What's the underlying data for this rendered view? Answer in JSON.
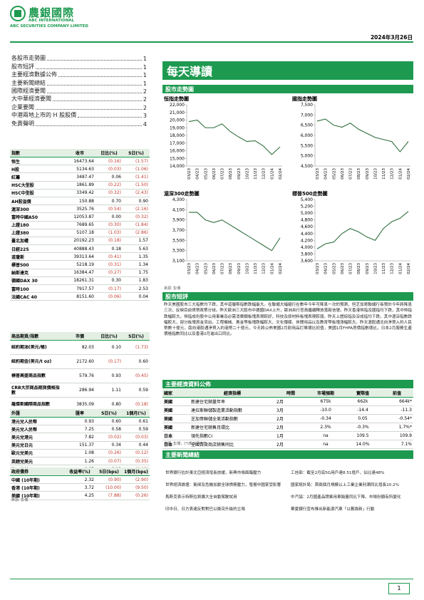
{
  "header": {
    "logo": "農銀國際",
    "company_en": "ABC INTERNATIONAL",
    "company_full": "ABC SECURITIES COMPANY LIMITED",
    "date": "2024年3月26日"
  },
  "toc": [
    {
      "title": "各股市走勢圖",
      "page": "1"
    },
    {
      "title": "股市短評",
      "page": "1"
    },
    {
      "title": "主要經濟數據公佈",
      "page": "1"
    },
    {
      "title": "主要新聞總結",
      "page": "1"
    },
    {
      "title": "國際經濟要聞",
      "page": "2"
    },
    {
      "title": "大中華經濟要聞",
      "page": "2"
    },
    {
      "title": "企業要聞",
      "page": "2"
    },
    {
      "title": "中港兩地上市的 H 股股價",
      "page": "3"
    },
    {
      "title": "免責聲明",
      "page": "4"
    }
  ],
  "title": "每天導讀",
  "charts_section": "股市走勢圖",
  "charts_source": "來源: 彭博",
  "chart_data": [
    {
      "type": "line",
      "title": "恒指走勢圖",
      "color": "#2f6e3e",
      "categories": [
        "03/23",
        "04/23",
        "05/23",
        "06/23",
        "07/23",
        "08/23",
        "09/23",
        "10/23",
        "11/23",
        "12/23",
        "01/24",
        "02/24"
      ],
      "values": [
        19800,
        20000,
        19000,
        19000,
        19500,
        18500,
        17800,
        17200,
        17300,
        16600,
        15500,
        16500
      ],
      "ylim": [
        14000,
        22000
      ],
      "yticks": [
        {
          "value": 14000,
          "label": "14,000"
        },
        {
          "value": 15000,
          "label": "15,000"
        },
        {
          "value": 16000,
          "label": "16,000"
        },
        {
          "value": 17000,
          "label": "17,000"
        },
        {
          "value": 18000,
          "label": "18,000"
        },
        {
          "value": 19000,
          "label": "19,000"
        },
        {
          "value": 20000,
          "label": "20,000"
        },
        {
          "value": 21000,
          "label": "21,000"
        },
        {
          "value": 22000,
          "label": "22,000"
        }
      ]
    },
    {
      "type": "line",
      "title": "國指走勢圖",
      "color": "#2f6e3e",
      "categories": [
        "03/23",
        "04/23",
        "05/23",
        "06/23",
        "07/23",
        "08/23",
        "09/23",
        "10/23",
        "11/23",
        "12/23",
        "01/24",
        "02/24"
      ],
      "values": [
        6700,
        6800,
        6500,
        6400,
        6600,
        6300,
        6100,
        5900,
        5800,
        5700,
        5200,
        5700
      ],
      "ylim": [
        4500,
        7500
      ],
      "yticks": [
        {
          "value": 4500,
          "label": "4,500"
        },
        {
          "value": 5000,
          "label": "5,000"
        },
        {
          "value": 5500,
          "label": "5,500"
        },
        {
          "value": 6000,
          "label": "6,000"
        },
        {
          "value": 6500,
          "label": "6,500"
        },
        {
          "value": 7000,
          "label": "7,000"
        },
        {
          "value": 7500,
          "label": "7,500"
        }
      ]
    },
    {
      "type": "line",
      "title": "滬深300走勢圖",
      "color": "#2f6e3e",
      "categories": [
        "03/23",
        "04/23",
        "05/23",
        "06/23",
        "07/23",
        "08/23",
        "09/23",
        "10/23",
        "11/23",
        "12/23",
        "01/24",
        "02/24"
      ],
      "values": [
        4050,
        4050,
        3900,
        3850,
        3900,
        3800,
        3700,
        3600,
        3500,
        3400,
        3300,
        3550
      ],
      "ylim": [
        3100,
        4300
      ],
      "yticks": [
        {
          "value": 3100,
          "label": "3,100"
        },
        {
          "value": 3300,
          "label": "3,300"
        },
        {
          "value": 3500,
          "label": "3,500"
        },
        {
          "value": 3700,
          "label": "3,700"
        },
        {
          "value": 3900,
          "label": "3,900"
        },
        {
          "value": 4100,
          "label": "4,100"
        },
        {
          "value": 4300,
          "label": "4,300"
        }
      ]
    },
    {
      "type": "line",
      "title": "標普500走勢圖",
      "color": "#2f6e3e",
      "categories": [
        "03/23",
        "04/23",
        "05/23",
        "06/23",
        "07/23",
        "08/23",
        "09/23",
        "10/23",
        "11/23",
        "12/23",
        "01/24",
        "02/24"
      ],
      "values": [
        3950,
        4100,
        4150,
        4400,
        4550,
        4450,
        4300,
        4200,
        4550,
        4750,
        4850,
        5050
      ],
      "ylim": [
        3600,
        5400
      ],
      "yticks": [
        {
          "value": 3600,
          "label": "3,600"
        },
        {
          "value": 3800,
          "label": "3,800"
        },
        {
          "value": 4000,
          "label": "4,000"
        },
        {
          "value": 4200,
          "label": "4,200"
        },
        {
          "value": 4400,
          "label": "4,400"
        },
        {
          "value": 4600,
          "label": "4,600"
        },
        {
          "value": 4800,
          "label": "4,800"
        },
        {
          "value": 5000,
          "label": "5,000"
        },
        {
          "value": 5200,
          "label": "5,200"
        },
        {
          "value": 5400,
          "label": "5,400"
        }
      ]
    }
  ],
  "commentary_title": "股市短評",
  "commentary": "昨天美國股市三大指數均下跌，其中道瓊斯指數跌幅最大。在聯儲大幅縮行在數年今年可降息一次的預測，但芝加哥聯儲行長預計今年將降息三次，反映目前貨幣政策分歧。昨天歐洲三大股市中德國DAX上升，歐洲央行官員繼續釋放寬鬆信號。昨天香港恒指及國指均下跌，其中恒指跌幅較大。恒指成份股中公用事業及必需消費類板塊表現較好，科技及原材料板塊表現較弱。昨天上證綜指及深成指均下跌，其中滬深指數跌幅較大，部分板塊資金流出。工程機械、黃金等板塊跌幅較大，文化傳媒、休閒用品以及教育等板塊漲幅較大。昨天滬股通北向淨買入約人民幣數十億元，南向港股通淨買入約港幣二十億元，今天將公佈美國2月耐用品訂單環比初值，美國1月FHFA房價指數環比，日本2月服務生產價格指數同比以及香港2月進出口同比。",
  "index_table": {
    "header": [
      "指數",
      "收市",
      "日比(%)",
      "5日(%)"
    ],
    "rows": [
      [
        "恒生",
        "16473.64",
        "(0.16)",
        "(1.57)"
      ],
      [
        "H股",
        "5134.63",
        "(0.03)",
        "(1.06)"
      ],
      [
        "紅籌",
        "3487.47",
        "0.06",
        "(1.41)"
      ],
      [
        "HSC大型股",
        "1861.89",
        "(0.22)",
        "(1.50)"
      ],
      [
        "HSC中型股",
        "3349.42",
        "(0.32)",
        "(2.43)"
      ],
      [
        "AH股溢價",
        "150.88",
        "0.70",
        "0.90"
      ],
      [
        "滬深300",
        "3525.76",
        "(0.54)",
        "(2.16)"
      ],
      [
        "富時中國A50",
        "12053.87",
        "0.00",
        "(0.32)"
      ],
      [
        "上證180",
        "7689.65",
        "(0.30)",
        "(1.84)"
      ],
      [
        "上證380",
        "5107.18",
        "(1.03)",
        "(2.86)"
      ],
      [
        "臺北加權",
        "20192.23",
        "(0.18)",
        "1.57"
      ],
      [
        "日經225",
        "40888.43",
        "0.18",
        "5.63"
      ],
      [
        "道瓊斯",
        "39313.64",
        "(0.41)",
        "1.35"
      ],
      [
        "標普500",
        "5218.19",
        "(0.31)",
        "1.34"
      ],
      [
        "納斯達克",
        "16384.47",
        "(0.27)",
        "1.75"
      ],
      [
        "德國DAX 30",
        "18261.31",
        "0.30",
        "1.83"
      ],
      [
        "富時100",
        "7917.57",
        "(0.17)",
        "2.53"
      ],
      [
        "法國CAC 40",
        "8151.60",
        "(0.06)",
        "0.04"
      ]
    ]
  },
  "commodity_table": {
    "header": [
      "商品期貨/指數",
      "市價",
      "日比(%)",
      "5日(%)"
    ],
    "rows": [
      [
        "紐約期油(美元/桶)",
        "82.03",
        "0.10",
        "(1.73)"
      ],
      [
        "紐約期金(美元/t oz)",
        "2172.60",
        "(0.17)",
        "0.60"
      ],
      [
        "標普高盛商品指數",
        "579.76",
        "0.93",
        "(0.45)"
      ],
      [
        "CRB大宗商品期貨價格指數",
        "286.94",
        "1.11",
        "0.59"
      ],
      [
        "羅傑斯國際商品指數",
        "3835.09",
        "0.80",
        "(0.18)"
      ]
    ]
  },
  "fx_table": {
    "header": [
      "外匯",
      "匯率",
      "5日(%)",
      "1個月(%)"
    ],
    "rows": [
      [
        "港元兌人民幣",
        "0.93",
        "0.60",
        "0.61"
      ],
      [
        "美元兌人民幣",
        "7.25",
        "0.58",
        "0.59"
      ],
      [
        "美元兌港元",
        "7.82",
        "(0.02)",
        "(0.03)"
      ],
      [
        "美元兌日元",
        "151.37",
        "0.34",
        "0.44"
      ],
      [
        "歐元兌美元",
        "1.08",
        "(0.26)",
        "(0.12)"
      ],
      [
        "英鎊兌美元",
        "1.26",
        "(0.07)",
        "(0.35)"
      ],
      [
        "澳元兌美元",
        "0.65",
        "0.09",
        "(0.03)"
      ]
    ]
  },
  "bond_table": {
    "header": [
      "政府債券",
      "收益率(%)",
      "5日(bps)",
      "1個月(bps)"
    ],
    "rows": [
      [
        "中國 (10年期)",
        "2.32",
        "(0.90)",
        "(2.90)"
      ],
      [
        "香港 (10年期)",
        "3.72",
        "(10.00)",
        "(9.50)"
      ],
      [
        "美國 (10年期)",
        "4.25",
        "(7.88)",
        "(0.26)"
      ]
    ]
  },
  "tables_source": "來源: 彭博",
  "econ_title": "主要經濟資料公佈",
  "econ_table": {
    "header": [
      "國家",
      "經濟指標",
      "時間",
      "市場預期",
      "實際值",
      "前值"
    ],
    "rows": [
      [
        "美國",
        "新建住宅銷量年率",
        "2月",
        "675k",
        "662k",
        "664k*"
      ],
      [
        "美國",
        "達拉斯聯儲製造業活動指數",
        "3月",
        "-10.0",
        "-14.4",
        "-11.3"
      ],
      [
        "美國",
        "芝加哥聯儲全美活動指數",
        "2月",
        "-0.34",
        "0.05",
        "-0.54*"
      ],
      [
        "美國",
        "新建住宅銷售月環比",
        "2月",
        "2.3%",
        "-0.3%",
        "1.7%*"
      ],
      [
        "日本",
        "領先指數CI",
        "1月",
        "na",
        "109.5",
        "109.9"
      ],
      [
        "日本",
        "全國百貨商店銷售同比",
        "2月",
        "na",
        "14.0%",
        "7.1%"
      ]
    ]
  },
  "econ_source": "來源: 彭博，(*)表示經修正",
  "news_title": "主要新聞總結",
  "news": {
    "left": [
      "世界銀行估計東北亞經濟增長放緩，新興市場面臨壓力",
      "世界經濟論壇：氣候及危機加劇全球債務壓力，發展中國家受影響",
      "馬斯克表示特斯拉將擴大全自動駕駛試用",
      "印中日、日方表達反對對巴以衝突升級的立場"
    ],
    "right": [
      "工信部：截至2月底5G用戶達8.51億戶，佔比達48%",
      "國家統計局：首兩個月規模以上工業企業利潤同比增長10.2%",
      "中汽協：2月國產品牌乘用車銷量同比下降，市場份額有所變化",
      "華夏銀行宣布推出新能源汽車「以舊換新」行動"
    ]
  },
  "page_number": "1"
}
